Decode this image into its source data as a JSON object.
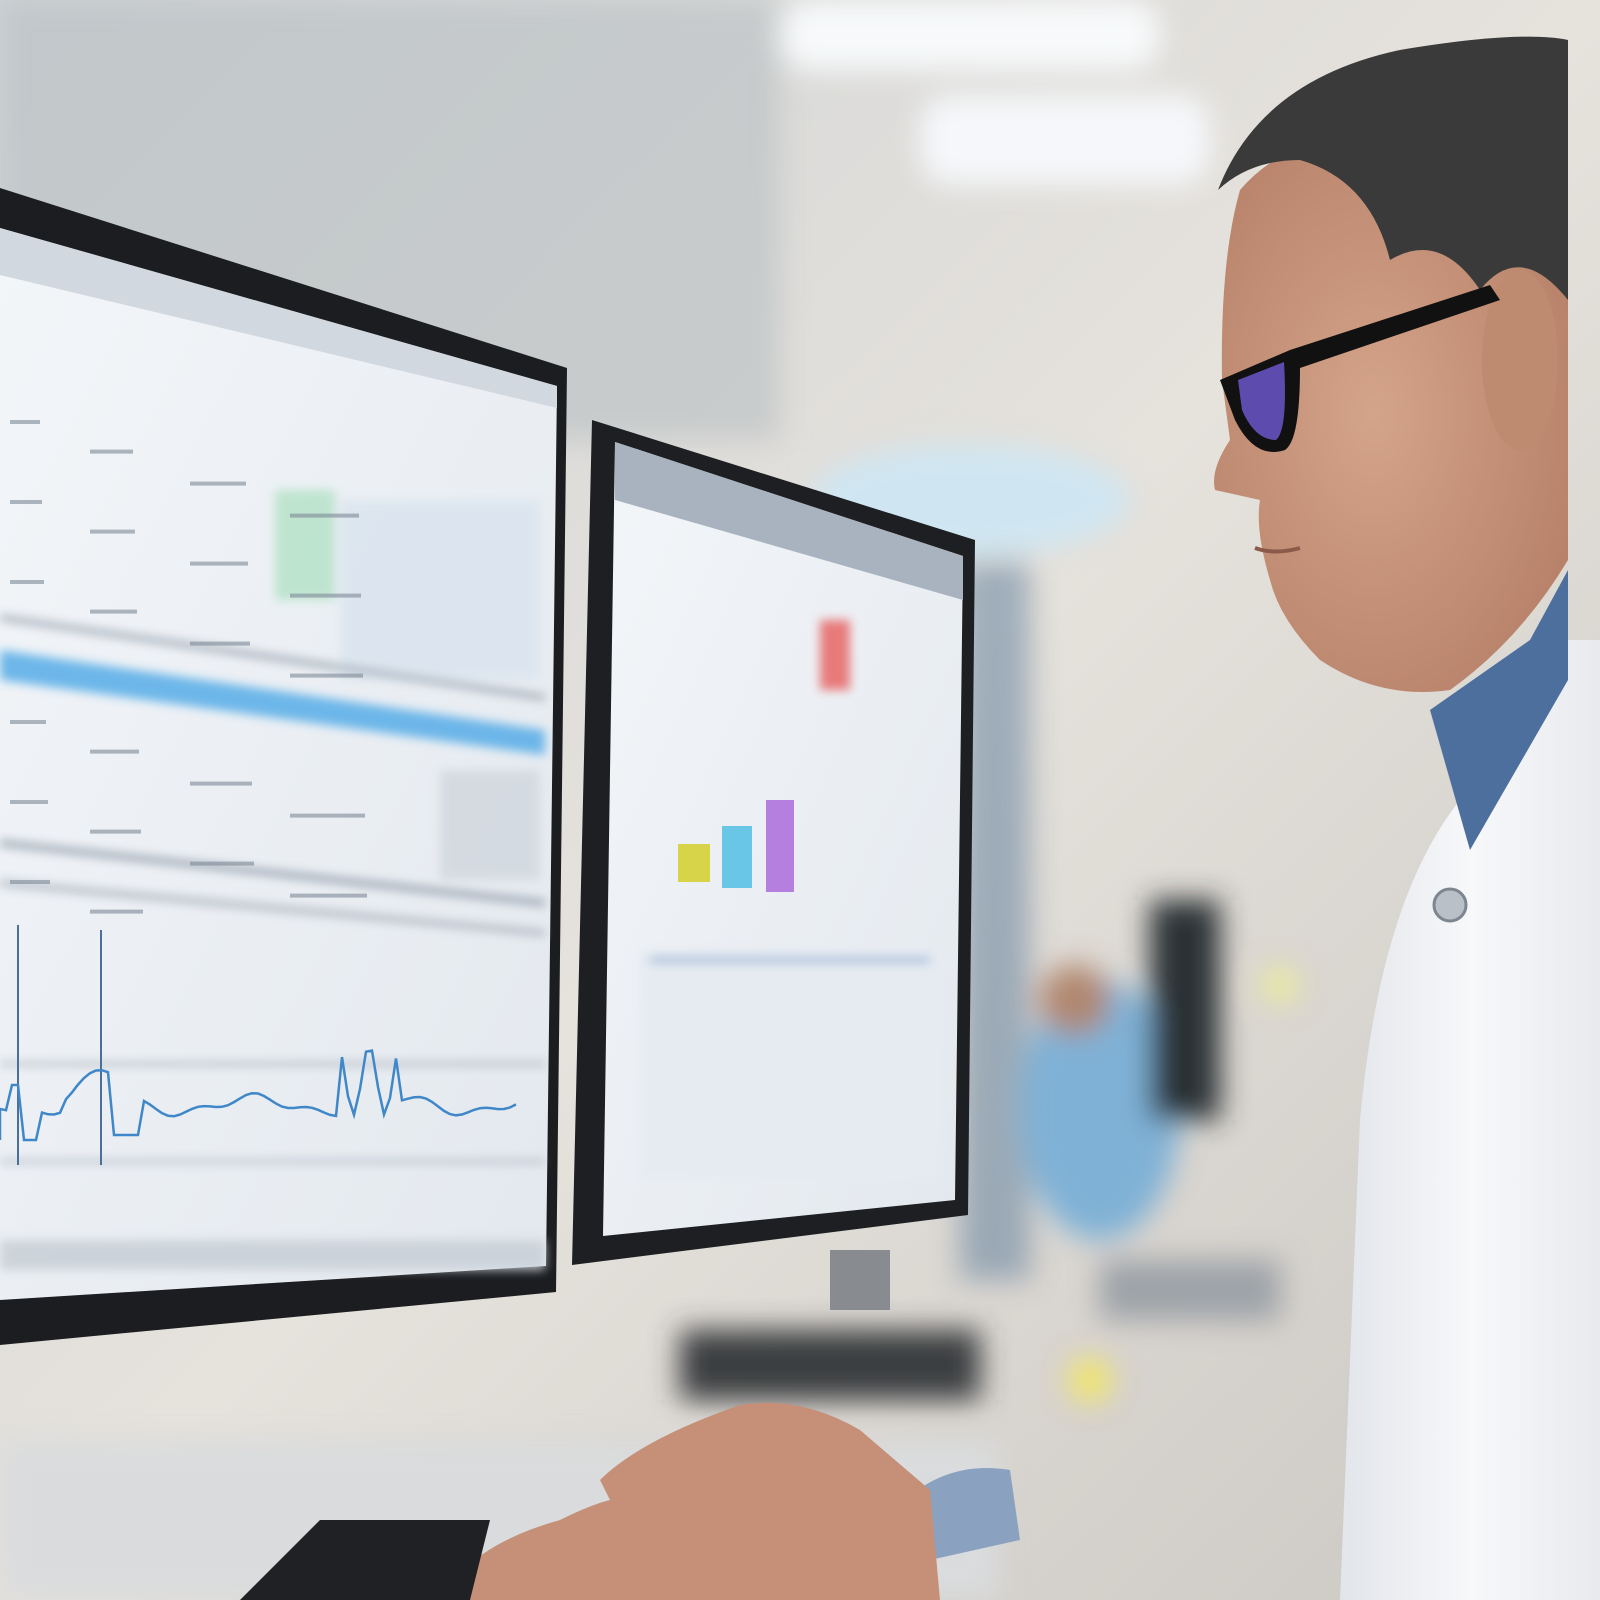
{
  "scene": {
    "colors": {
      "wall": "#e4e0da",
      "ceiling_light": "#f4f6f8",
      "bezel": "#1d1f22",
      "screen": "#eef1f5",
      "highlight_row": "#5fb0e8",
      "waveform": "#3f87c8",
      "skin": "#c8967c",
      "hair": "#3a3a3a",
      "glasses_lens": "#6b56c9",
      "lab_coat": "#f3f4f6",
      "shirt": "#4d6f9e"
    },
    "right_monitor_bars": [
      {
        "color": "#d8d44a",
        "level": 0.38
      },
      {
        "color": "#69c6e6",
        "level": 0.62
      },
      {
        "color": "#b57fe0",
        "level": 0.92
      }
    ],
    "right_monitor_red_bar": {
      "color": "#e87a7a"
    }
  }
}
